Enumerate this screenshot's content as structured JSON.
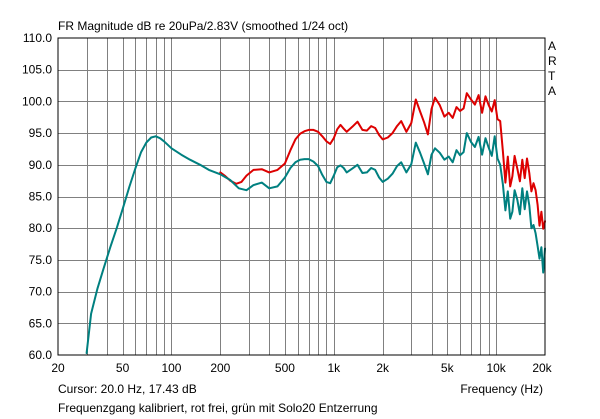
{
  "chart_data": {
    "type": "line",
    "title": "FR Magnitude dB re 20uPa/2.83V (smoothed 1/24 oct)",
    "watermark": [
      "A",
      "R",
      "T",
      "A"
    ],
    "xlabel": "Frequency (Hz)",
    "xscale": "log",
    "xlim": [
      20,
      20000
    ],
    "ylim": [
      60,
      110
    ],
    "yticks": [
      "110.0",
      "105.0",
      "100.0",
      "95.0",
      "90.0",
      "85.0",
      "80.0",
      "75.0",
      "70.0",
      "65.0",
      "60.0"
    ],
    "xticks": [
      {
        "value": 20,
        "label": "20"
      },
      {
        "value": 50,
        "label": "50"
      },
      {
        "value": 100,
        "label": "100"
      },
      {
        "value": 200,
        "label": "200"
      },
      {
        "value": 500,
        "label": "500"
      },
      {
        "value": 1000,
        "label": "1k"
      },
      {
        "value": 2000,
        "label": "2k"
      },
      {
        "value": 5000,
        "label": "5k"
      },
      {
        "value": 10000,
        "label": "10k"
      },
      {
        "value": 20000,
        "label": "20k"
      }
    ],
    "grid": true,
    "cursor_readout": "Cursor: 20.0 Hz, 17.43 dB",
    "caption": "Frequenzgang kalibriert, rot frei, grün mit Solo20 Entzerrung",
    "series": [
      {
        "color": "#dd0000",
        "x": [
          200,
          215,
          230,
          250,
          270,
          290,
          320,
          360,
          400,
          450,
          500,
          540,
          580,
          620,
          660,
          700,
          750,
          800,
          850,
          900,
          950,
          1000,
          1050,
          1100,
          1150,
          1200,
          1300,
          1400,
          1500,
          1600,
          1700,
          1800,
          1900,
          2000,
          2150,
          2300,
          2450,
          2600,
          2800,
          3000,
          3200,
          3400,
          3600,
          3800,
          4000,
          4200,
          4500,
          4800,
          5100,
          5400,
          5700,
          6000,
          6300,
          6600,
          7000,
          7400,
          7800,
          8200,
          8600,
          9000,
          9400,
          9800,
          10200,
          10600,
          11000,
          11400,
          11800,
          12200,
          12600,
          13000,
          13500,
          14000,
          14500,
          15000,
          15500,
          16000,
          16500,
          17000,
          17500,
          18000,
          18500,
          19000,
          19500,
          20000
        ],
        "y": [
          88.8,
          88.2,
          87.5,
          87.0,
          87.3,
          88.3,
          89.2,
          89.3,
          88.8,
          89.2,
          90.2,
          92.3,
          94.0,
          94.9,
          95.3,
          95.5,
          95.5,
          95.2,
          94.5,
          93.7,
          93.3,
          94.2,
          95.6,
          96.3,
          95.7,
          95.2,
          96.0,
          96.8,
          95.5,
          95.4,
          96.1,
          95.8,
          94.7,
          94.0,
          94.3,
          95.0,
          96.1,
          96.9,
          95.2,
          96.6,
          100.3,
          98.4,
          96.7,
          94.8,
          98.8,
          100.6,
          99.4,
          97.6,
          98.2,
          97.4,
          99.1,
          98.5,
          98.9,
          101.3,
          100.3,
          99.5,
          101.0,
          98.2,
          100.8,
          99.4,
          98.4,
          100.2,
          97.2,
          96.9,
          92.1,
          87.2,
          91.3,
          86.6,
          88.2,
          91.4,
          89.4,
          87.4,
          90.8,
          87.9,
          91.0,
          88.7,
          85.8,
          87.1,
          86.0,
          83.7,
          80.4,
          82.6,
          79.9,
          81.1
        ]
      },
      {
        "color": "#008080",
        "x": [
          30,
          32,
          35,
          38,
          42,
          46,
          50,
          55,
          60,
          65,
          70,
          75,
          80,
          85,
          90,
          100,
          115,
          130,
          150,
          170,
          200,
          230,
          260,
          290,
          320,
          360,
          400,
          450,
          500,
          540,
          580,
          620,
          660,
          700,
          750,
          800,
          850,
          900,
          950,
          1000,
          1050,
          1100,
          1150,
          1200,
          1300,
          1400,
          1500,
          1600,
          1700,
          1800,
          1900,
          2000,
          2150,
          2300,
          2450,
          2600,
          2800,
          3000,
          3200,
          3400,
          3600,
          3800,
          4000,
          4200,
          4500,
          4800,
          5100,
          5400,
          5700,
          6000,
          6300,
          6600,
          7000,
          7400,
          7800,
          8200,
          8600,
          9000,
          9400,
          9800,
          10200,
          10600,
          11000,
          11400,
          11800,
          12200,
          12600,
          13000,
          13500,
          14000,
          14500,
          15000,
          15500,
          16000,
          16500,
          17000,
          17500,
          18000,
          18500,
          19000,
          19500,
          20000
        ],
        "y": [
          60.3,
          66.5,
          70.5,
          73.5,
          77.0,
          80.0,
          83.0,
          86.5,
          89.5,
          92.0,
          93.5,
          94.3,
          94.5,
          94.2,
          93.7,
          92.6,
          91.6,
          90.8,
          90.0,
          89.2,
          88.5,
          87.6,
          86.3,
          86.0,
          86.8,
          87.2,
          86.3,
          86.6,
          88.0,
          89.5,
          90.4,
          90.8,
          90.9,
          90.9,
          90.5,
          89.8,
          88.4,
          87.3,
          87.1,
          88.3,
          89.6,
          89.9,
          89.5,
          88.8,
          89.4,
          90.0,
          88.7,
          88.8,
          89.5,
          89.2,
          88.0,
          87.3,
          87.8,
          88.6,
          89.8,
          90.4,
          88.8,
          90.1,
          93.5,
          91.9,
          90.2,
          88.5,
          91.6,
          92.6,
          91.9,
          90.8,
          91.3,
          90.4,
          92.3,
          91.5,
          92.0,
          95.0,
          93.6,
          92.8,
          94.4,
          91.6,
          94.2,
          92.7,
          91.4,
          94.5,
          91.0,
          90.0,
          86.9,
          82.8,
          85.8,
          81.5,
          82.6,
          86.0,
          84.5,
          82.2,
          86.3,
          83.0,
          85.8,
          83.6,
          80.0,
          80.5,
          79.2,
          77.2,
          75.2,
          77.0,
          73.0,
          76.8
        ]
      }
    ]
  }
}
